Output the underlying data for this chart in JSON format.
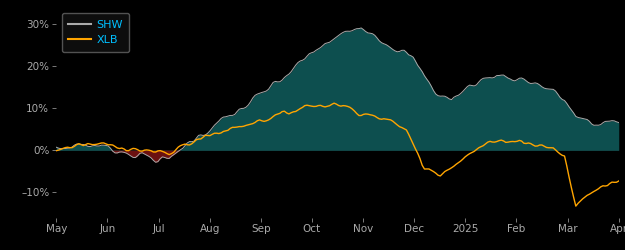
{
  "background_color": "#000000",
  "plot_bg_color": "#000000",
  "shw_color": "#aaaaaa",
  "xlb_color": "#FFA500",
  "fill_positive_color": "#0d4f4f",
  "fill_negative_color": "#6b1010",
  "legend_edge_color": "#666666",
  "legend_face_color": "#111111",
  "legend_text_color": "#00bfff",
  "tick_color": "#aaaaaa",
  "ylim": [
    -16,
    34
  ],
  "yticks": [
    -10,
    0,
    10,
    20,
    30
  ],
  "ytick_labels": [
    "–10%",
    "0%",
    "10%",
    "20%",
    "30%"
  ],
  "xlabel_months": [
    "May",
    "Jun",
    "Jul",
    "Aug",
    "Sep",
    "Oct",
    "Nov",
    "Dec",
    "2025",
    "Feb",
    "Mar",
    "Apr"
  ],
  "n_points": 250
}
